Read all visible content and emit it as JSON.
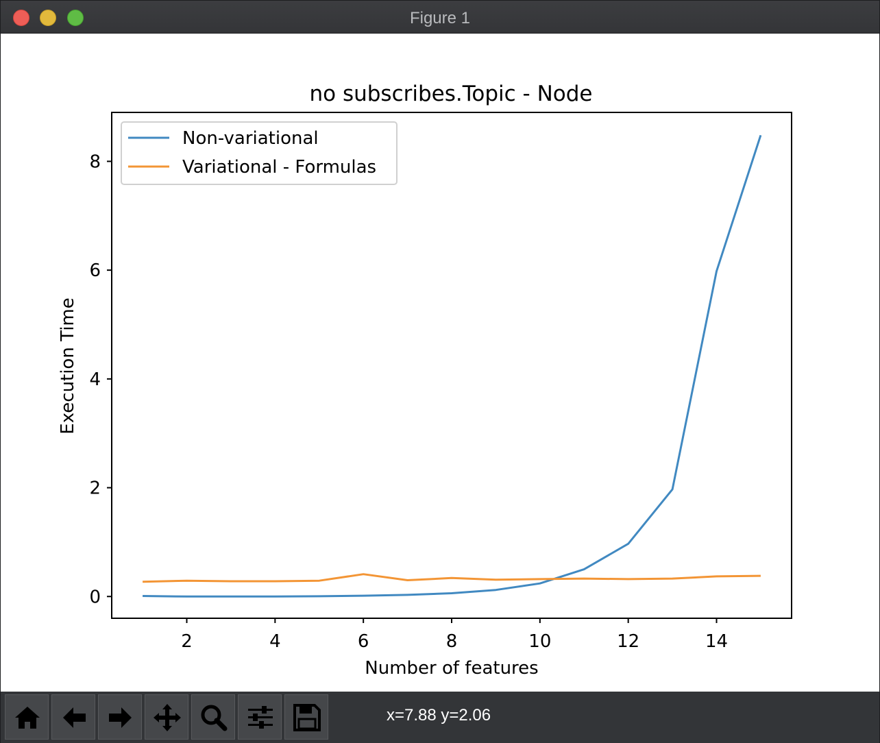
{
  "window": {
    "title": "Figure 1"
  },
  "toolbar": {
    "buttons": [
      {
        "name": "home-icon"
      },
      {
        "name": "back-arrow-icon"
      },
      {
        "name": "forward-arrow-icon"
      },
      {
        "name": "pan-move-icon"
      },
      {
        "name": "zoom-magnifier-icon"
      },
      {
        "name": "configure-subplots-icon"
      },
      {
        "name": "save-floppy-icon"
      }
    ],
    "coords_text": "x=7.88 y=2.06"
  },
  "chart_data": {
    "type": "line",
    "title": "no subscribes.Topic - Node",
    "xlabel": "Number of features",
    "ylabel": "Execution Time",
    "xlim": [
      0.3,
      15.7
    ],
    "ylim": [
      -0.4,
      8.9
    ],
    "xticks": [
      2,
      4,
      6,
      8,
      10,
      12,
      14
    ],
    "yticks": [
      0,
      2,
      4,
      6,
      8
    ],
    "grid": false,
    "legend_position": "top-left",
    "x": [
      1,
      2,
      3,
      4,
      5,
      6,
      7,
      8,
      9,
      10,
      11,
      12,
      13,
      14,
      15
    ],
    "series": [
      {
        "name": "Non-variational",
        "color": "#4189c1",
        "values": [
          0.01,
          0.0,
          0.0,
          0.0,
          0.005,
          0.015,
          0.03,
          0.06,
          0.12,
          0.24,
          0.5,
          0.97,
          1.97,
          5.98,
          8.48
        ]
      },
      {
        "name": "Variational - Formulas",
        "color": "#f39535",
        "values": [
          0.27,
          0.29,
          0.28,
          0.28,
          0.29,
          0.41,
          0.3,
          0.34,
          0.31,
          0.32,
          0.33,
          0.32,
          0.33,
          0.37,
          0.38
        ]
      }
    ]
  }
}
